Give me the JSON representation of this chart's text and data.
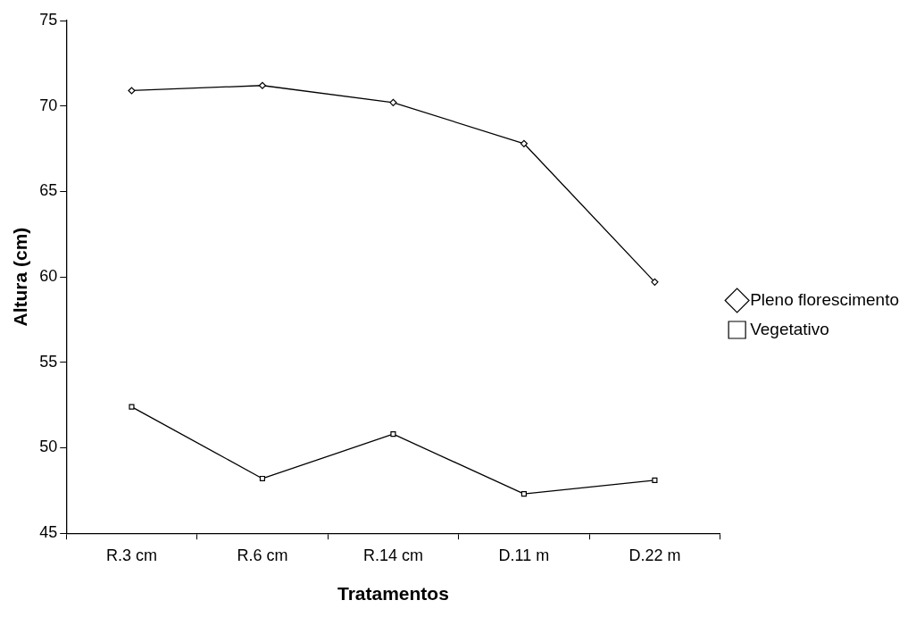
{
  "chart_data": {
    "type": "line",
    "xlabel": "Tratamentos",
    "ylabel": "Altura (cm)",
    "categories": [
      "R.3 cm",
      "R.6 cm",
      "R.14 cm",
      "D.11 m",
      "D.22 m"
    ],
    "series": [
      {
        "name": "Pleno florescimento",
        "color": "#000000",
        "marker": "diamond",
        "values": [
          70.9,
          71.2,
          70.2,
          67.8,
          59.7
        ]
      },
      {
        "name": "Vegetativo",
        "color": "#000000",
        "marker": "square",
        "values": [
          52.4,
          48.2,
          50.8,
          47.3,
          48.1
        ]
      }
    ],
    "ylim": [
      45,
      75
    ],
    "yticks": [
      45,
      50,
      55,
      60,
      65,
      70,
      75
    ],
    "grid": false,
    "legend": "right",
    "line_style": "solid"
  }
}
